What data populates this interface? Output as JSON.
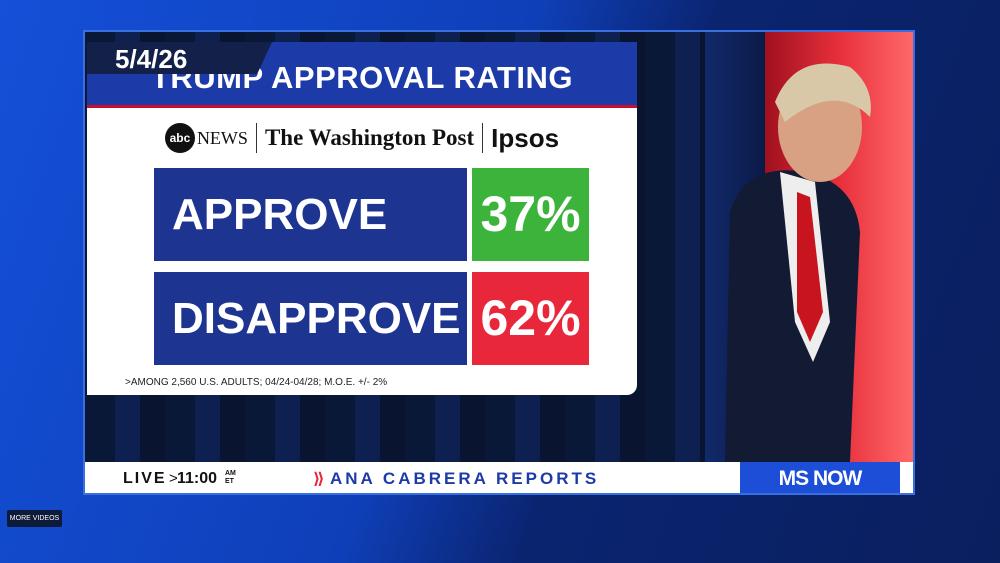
{
  "date": "5/4/26",
  "title": "TRUMP APPROVAL RATING",
  "sources": {
    "abc_logo": "abc",
    "abc": "NEWS",
    "post": "The Washington Post",
    "ipsos": "Ipsos"
  },
  "rows": [
    {
      "label": "APPROVE",
      "value": "37%"
    },
    {
      "label": "DISAPPROVE",
      "value": "62%"
    }
  ],
  "footnote": ">AMONG 2,560 U.S. ADULTS; 04/24-04/28; M.O.E. +/- 2%",
  "ticker": {
    "live": "LIVE",
    "time": "11:00",
    "am": "AM",
    "et": "ET",
    "show": "ANA CABRERA REPORTS",
    "network": "MS NOW"
  },
  "button": "MORE VIDEOS"
}
